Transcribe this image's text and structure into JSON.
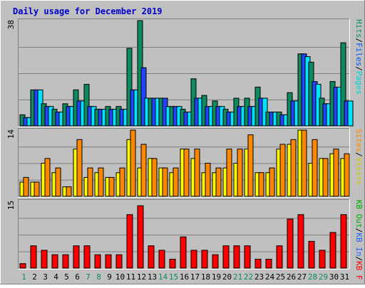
{
  "chart_data": {
    "type": "bar",
    "title": "Daily usage for December 2019",
    "categories": [
      "1",
      "2",
      "3",
      "4",
      "5",
      "6",
      "7",
      "8",
      "9",
      "10",
      "11",
      "12",
      "13",
      "14",
      "15",
      "16",
      "17",
      "18",
      "19",
      "20",
      "21",
      "22",
      "23",
      "24",
      "25",
      "26",
      "27",
      "28",
      "29",
      "30",
      "31"
    ],
    "weekend_days": [
      1,
      7,
      8,
      14,
      15,
      21,
      22,
      28,
      29
    ],
    "panels": [
      {
        "id": "hits",
        "max_label": "38",
        "ylim": [
          0,
          38
        ],
        "right_label": [
          {
            "text": "Pages",
            "color": "#00d4d4"
          },
          {
            "text": "Files",
            "color": "#0055ff"
          },
          {
            "text": "Hits",
            "color": "#0e8a5f"
          }
        ],
        "series": [
          {
            "name": "Hits",
            "color": "#0e8a5f",
            "values": [
              4,
              13,
              8,
              6,
              8,
              13,
              15,
              6,
              7,
              7,
              28,
              38,
              10,
              10,
              7,
              6,
              17,
              11,
              9,
              6,
              10,
              10,
              14,
              5,
              5,
              12,
              26,
              23,
              10,
              16,
              30
            ]
          },
          {
            "name": "Files",
            "color": "#2244ff",
            "values": [
              3,
              13,
              7,
              5,
              7,
              9,
              7,
              6,
              6,
              6,
              13,
              21,
              10,
              10,
              7,
              5,
              10,
              7,
              7,
              5,
              7,
              7,
              10,
              5,
              4,
              9,
              26,
              16,
              8,
              14,
              9
            ]
          },
          {
            "name": "Pages",
            "color": "#00e5ff",
            "values": [
              3,
              13,
              7,
              5,
              7,
              9,
              7,
              6,
              6,
              6,
              13,
              10,
              10,
              7,
              7,
              5,
              10,
              7,
              7,
              5,
              7,
              7,
              10,
              5,
              4,
              9,
              25,
              15,
              8,
              14,
              9
            ]
          }
        ]
      },
      {
        "id": "visits",
        "max_label": "14",
        "ylim": [
          0,
          14
        ],
        "right_label": [
          {
            "text": "Visits",
            "color": "#cccc00"
          },
          {
            "text": "Sites",
            "color": "#ff8800"
          }
        ],
        "series": [
          {
            "name": "Visits",
            "color": "#ffff00",
            "values": [
              3,
              3,
              7,
              5,
              2,
              10,
              4,
              5,
              4,
              5,
              12,
              6,
              8,
              6,
              5,
              10,
              8,
              5,
              5,
              6,
              7,
              10,
              5,
              5,
              10,
              11,
              14,
              7,
              8,
              9,
              8
            ]
          },
          {
            "name": "Sites",
            "color": "#ff8800",
            "values": [
              4,
              3,
              8,
              6,
              2,
              12,
              6,
              6,
              4,
              6,
              14,
              11,
              8,
              6,
              6,
              10,
              10,
              7,
              6,
              10,
              10,
              13,
              5,
              6,
              11,
              12,
              14,
              12,
              8,
              10,
              9
            ]
          }
        ]
      },
      {
        "id": "kbytes",
        "max_label": "15",
        "ylim": [
          0,
          15
        ],
        "right_label": [
          {
            "text": "KB F",
            "color": "#ff0000"
          },
          {
            "text": "KB In",
            "color": "#2266ff"
          },
          {
            "text": "KB Out",
            "color": "#00aa00"
          }
        ],
        "series": [
          {
            "name": "KB F",
            "color": "#ff0000",
            "values": [
              1,
              5,
              4,
              3,
              3,
              5,
              5,
              3,
              3,
              3,
              12,
              14,
              5,
              4,
              2,
              7,
              4,
              4,
              3,
              5,
              5,
              5,
              2,
              2,
              5,
              11,
              12,
              6,
              4,
              8,
              12
            ]
          }
        ]
      }
    ]
  }
}
